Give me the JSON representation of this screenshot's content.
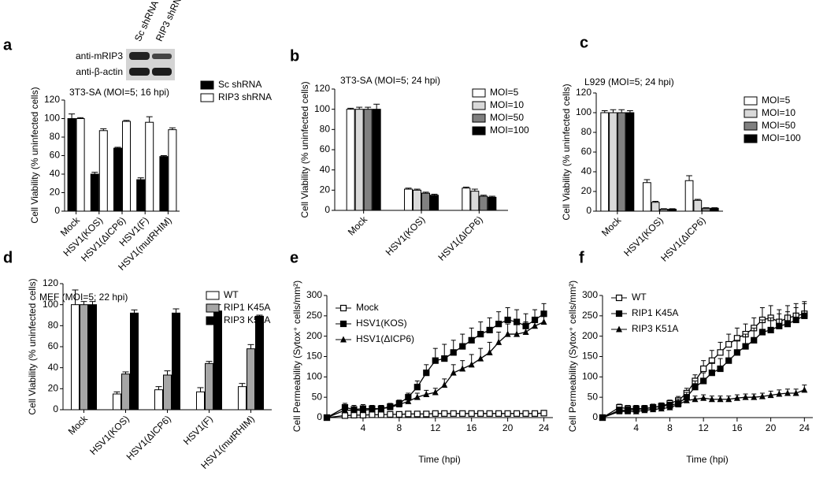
{
  "chart_data": [
    {
      "type": "bar",
      "panel": "a",
      "title": "3T3-SA (MOI=5; 16 hpi)",
      "y_label": "Cell Viability (% uninfected cells)",
      "blot": {
        "lanes": [
          "Sc shRNA",
          "RIP3 shRNA"
        ],
        "rows": [
          "anti-mRIP3",
          "anti-β-actin"
        ]
      },
      "categories": [
        "Mock",
        "HSV1(KOS)",
        "HSV1(ΔICP6)",
        "HSV1(F)",
        "HSV1(mutRHIM)"
      ],
      "series": [
        {
          "name": "Sc shRNA",
          "color": "#000000",
          "values": [
            100,
            40,
            68,
            34,
            59
          ],
          "errors": [
            5,
            2,
            1,
            2,
            1
          ]
        },
        {
          "name": "RIP3 shRNA",
          "color": "#ffffff",
          "values": [
            100,
            87,
            97,
            96,
            88
          ],
          "errors": [
            1,
            2,
            1,
            6,
            2
          ]
        }
      ],
      "ylim": [
        0,
        120
      ],
      "yticks": [
        0,
        20,
        40,
        60,
        80,
        100,
        120
      ]
    },
    {
      "type": "bar",
      "panel": "b",
      "title": "3T3-SA (MOI=5; 24 hpi)",
      "y_label": "Cell Viability (% uninfected cells)",
      "categories": [
        "Mock",
        "HSV1(KOS)",
        "HSV1(ΔICP6)"
      ],
      "series": [
        {
          "name": "MOI=5",
          "color": "#ffffff",
          "values": [
            100,
            21,
            22
          ],
          "errors": [
            1,
            1,
            1
          ]
        },
        {
          "name": "MOI=10",
          "color": "#d9d9d9",
          "values": [
            100,
            20,
            19
          ],
          "errors": [
            2,
            1,
            2
          ]
        },
        {
          "name": "MOI=50",
          "color": "#808080",
          "values": [
            100,
            17,
            14
          ],
          "errors": [
            2,
            1,
            1
          ]
        },
        {
          "name": "MOI=100",
          "color": "#000000",
          "values": [
            100,
            15,
            13
          ],
          "errors": [
            5,
            1,
            1
          ]
        }
      ],
      "ylim": [
        0,
        120
      ],
      "yticks": [
        0,
        20,
        40,
        60,
        80,
        100,
        120
      ]
    },
    {
      "type": "bar",
      "panel": "c",
      "title": "L929 (MOI=5; 24 hpi)",
      "y_label": "Cell Viability (% uninfected cells)",
      "categories": [
        "Mock",
        "HSV1(KOS)",
        "HSV1(ΔICP6)"
      ],
      "series": [
        {
          "name": "MOI=5",
          "color": "#ffffff",
          "values": [
            100,
            29,
            31
          ],
          "errors": [
            2,
            3,
            5
          ]
        },
        {
          "name": "MOI=10",
          "color": "#d9d9d9",
          "values": [
            100,
            9,
            11
          ],
          "errors": [
            3,
            1,
            1
          ]
        },
        {
          "name": "MOI=50",
          "color": "#808080",
          "values": [
            100,
            2,
            3
          ],
          "errors": [
            3,
            0.5,
            0.5
          ]
        },
        {
          "name": "MOI=100",
          "color": "#000000",
          "values": [
            100,
            2,
            3
          ],
          "errors": [
            2,
            0.5,
            0.5
          ]
        }
      ],
      "ylim": [
        0,
        120
      ],
      "yticks": [
        0,
        20,
        40,
        60,
        80,
        100,
        120
      ]
    },
    {
      "type": "bar",
      "panel": "d",
      "title": "MEF (MOI=5; 22 hpi)",
      "y_label": "Cell Viability (% uninfected cells)",
      "categories": [
        "Mock",
        "HSV1(KOS)",
        "HSV1(ΔICP6)",
        "HSV1(F)",
        "HSV1(mutRHIM)"
      ],
      "series": [
        {
          "name": "WT",
          "color": "#ffffff",
          "values": [
            100,
            15,
            19,
            17,
            22
          ],
          "errors": [
            14,
            2,
            3,
            4,
            3
          ]
        },
        {
          "name": "RIP1 K45A",
          "color": "#a6a6a6",
          "values": [
            100,
            34,
            33,
            44,
            58
          ],
          "errors": [
            3,
            2,
            4,
            2,
            4
          ]
        },
        {
          "name": "RIP3 K51A",
          "color": "#000000",
          "values": [
            100,
            92,
            92,
            94,
            89
          ],
          "errors": [
            3,
            3,
            4,
            6,
            1
          ]
        }
      ],
      "ylim": [
        0,
        120
      ],
      "yticks": [
        0,
        20,
        40,
        60,
        80,
        100,
        120
      ]
    },
    {
      "type": "line",
      "panel": "e",
      "x_label": "Time (hpi)",
      "y_label": "Cell Permeability (Sytox⁺ cells/mm²)",
      "x": [
        0,
        2,
        3,
        4,
        5,
        6,
        7,
        8,
        9,
        10,
        11,
        12,
        13,
        14,
        15,
        16,
        17,
        18,
        19,
        20,
        21,
        22,
        23,
        24
      ],
      "series": [
        {
          "name": "Mock",
          "color": "#000000",
          "marker": "open-square",
          "values": [
            0,
            5,
            6,
            6,
            7,
            7,
            8,
            8,
            9,
            9,
            9,
            10,
            10,
            10,
            10,
            10,
            10,
            10,
            10,
            10,
            10,
            10,
            10,
            11
          ],
          "errors": [
            0,
            3,
            3,
            3,
            3,
            3,
            3,
            3,
            3,
            3,
            3,
            3,
            3,
            3,
            3,
            3,
            3,
            3,
            3,
            3,
            3,
            3,
            3,
            3
          ]
        },
        {
          "name": "HSV1(KOS)",
          "color": "#000000",
          "marker": "square",
          "values": [
            0,
            25,
            20,
            22,
            22,
            22,
            27,
            35,
            50,
            75,
            110,
            140,
            145,
            160,
            175,
            190,
            205,
            215,
            230,
            240,
            235,
            225,
            240,
            255
          ],
          "errors": [
            0,
            10,
            10,
            10,
            8,
            8,
            8,
            8,
            10,
            15,
            20,
            30,
            35,
            30,
            30,
            30,
            30,
            30,
            30,
            30,
            30,
            30,
            25,
            25
          ]
        },
        {
          "name": "HSV1(ΔICP6)",
          "color": "#000000",
          "marker": "triangle",
          "values": [
            0,
            18,
            18,
            18,
            20,
            22,
            25,
            32,
            40,
            50,
            57,
            62,
            80,
            110,
            120,
            130,
            145,
            160,
            185,
            205,
            205,
            210,
            225,
            235
          ],
          "errors": [
            0,
            8,
            8,
            8,
            8,
            8,
            8,
            8,
            8,
            10,
            10,
            10,
            15,
            20,
            20,
            25,
            25,
            25,
            25,
            25,
            25,
            25,
            20,
            20
          ]
        }
      ],
      "xlim": [
        0,
        25
      ],
      "xticks": [
        4,
        8,
        12,
        16,
        20,
        24
      ],
      "ylim": [
        0,
        300
      ],
      "yticks": [
        0,
        50,
        100,
        150,
        200,
        250,
        300
      ]
    },
    {
      "type": "line",
      "panel": "f",
      "x_label": "Time (hpi)",
      "y_label": "Cell Permeability (Sytox⁺ cells/mm²)",
      "x": [
        0,
        2,
        3,
        4,
        5,
        6,
        7,
        8,
        9,
        10,
        11,
        12,
        13,
        14,
        15,
        16,
        17,
        18,
        19,
        20,
        21,
        22,
        23,
        24
      ],
      "series": [
        {
          "name": "WT",
          "color": "#000000",
          "marker": "open-square",
          "values": [
            0,
            25,
            22,
            22,
            22,
            25,
            28,
            35,
            42,
            60,
            90,
            120,
            140,
            160,
            180,
            195,
            205,
            220,
            240,
            245,
            235,
            245,
            250,
            255
          ],
          "errors": [
            0,
            8,
            8,
            8,
            8,
            8,
            8,
            8,
            10,
            12,
            15,
            20,
            25,
            25,
            25,
            25,
            25,
            25,
            30,
            30,
            30,
            30,
            30,
            30
          ]
        },
        {
          "name": "RIP1 K45A",
          "color": "#000000",
          "marker": "square",
          "values": [
            0,
            18,
            18,
            20,
            22,
            25,
            28,
            30,
            35,
            50,
            75,
            90,
            110,
            120,
            140,
            160,
            175,
            190,
            210,
            215,
            225,
            230,
            240,
            250
          ],
          "errors": [
            0,
            8,
            8,
            8,
            8,
            8,
            8,
            8,
            10,
            12,
            15,
            20,
            25,
            25,
            25,
            30,
            30,
            30,
            30,
            30,
            30,
            30,
            30,
            30
          ]
        },
        {
          "name": "RIP3 K51A",
          "color": "#000000",
          "marker": "triangle",
          "values": [
            0,
            15,
            15,
            15,
            18,
            20,
            22,
            25,
            32,
            42,
            45,
            48,
            45,
            45,
            45,
            48,
            50,
            50,
            52,
            55,
            58,
            60,
            60,
            68
          ],
          "errors": [
            0,
            5,
            5,
            5,
            5,
            5,
            5,
            5,
            8,
            8,
            8,
            8,
            8,
            8,
            8,
            8,
            8,
            8,
            8,
            10,
            10,
            10,
            10,
            12
          ]
        }
      ],
      "xlim": [
        0,
        25
      ],
      "xticks": [
        4,
        8,
        12,
        16,
        20,
        24
      ],
      "ylim": [
        0,
        300
      ],
      "yticks": [
        0,
        50,
        100,
        150,
        200,
        250,
        300
      ]
    }
  ]
}
